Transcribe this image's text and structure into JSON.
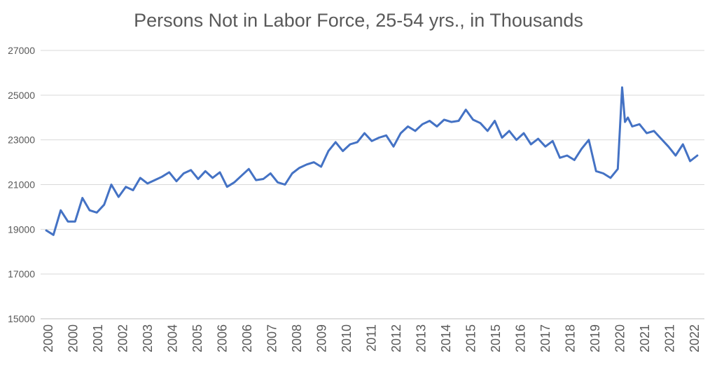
{
  "chart_data": {
    "type": "line",
    "title": "Persons Not in Labor Force, 25-54 yrs.,  in Thousands",
    "xlabel": "",
    "ylabel": "",
    "ylim": [
      15000,
      27000
    ],
    "y_ticks": [
      15000,
      17000,
      19000,
      21000,
      23000,
      25000,
      27000
    ],
    "y_tick_labels": [
      "15000",
      "17000",
      "19000",
      "21000",
      "23000",
      "25000",
      "27000"
    ],
    "x_tick_labels": [
      "2000",
      "2000",
      "2001",
      "2002",
      "2003",
      "2004",
      "2005",
      "2006",
      "2006",
      "2007",
      "2008",
      "2009",
      "2010",
      "2011",
      "2012",
      "2013",
      "2014",
      "2015",
      "2015",
      "2016",
      "2017",
      "2018",
      "2019",
      "2020",
      "2021",
      "2021",
      "2022"
    ],
    "grid": true,
    "legend": "none",
    "series": [
      {
        "color": "#4472C4",
        "x": [
          2000.0,
          2000.25,
          2000.5,
          2000.75,
          2001.0,
          2001.25,
          2001.5,
          2001.75,
          2002.0,
          2002.25,
          2002.5,
          2002.75,
          2003.0,
          2003.25,
          2003.5,
          2003.75,
          2004.0,
          2004.25,
          2004.5,
          2004.75,
          2005.0,
          2005.25,
          2005.5,
          2005.75,
          2006.0,
          2006.25,
          2006.5,
          2006.75,
          2007.0,
          2007.25,
          2007.5,
          2007.75,
          2008.0,
          2008.25,
          2008.5,
          2008.75,
          2009.0,
          2009.25,
          2009.5,
          2009.75,
          2010.0,
          2010.25,
          2010.5,
          2010.75,
          2011.0,
          2011.25,
          2011.5,
          2011.75,
          2012.0,
          2012.25,
          2012.5,
          2012.75,
          2013.0,
          2013.25,
          2013.5,
          2013.75,
          2014.0,
          2014.25,
          2014.5,
          2014.75,
          2015.0,
          2015.25,
          2015.5,
          2015.75,
          2016.0,
          2016.25,
          2016.5,
          2016.75,
          2017.0,
          2017.25,
          2017.5,
          2017.75,
          2018.0,
          2018.25,
          2018.5,
          2018.75,
          2019.0,
          2019.25,
          2019.5,
          2019.75,
          2019.9,
          2020.0,
          2020.1,
          2020.25,
          2020.5,
          2020.75,
          2021.0,
          2021.25,
          2021.5,
          2021.75,
          2022.0,
          2022.25,
          2022.5
        ],
        "values": [
          18950,
          18750,
          19850,
          19350,
          19350,
          20400,
          19850,
          19750,
          20100,
          21000,
          20450,
          20900,
          20750,
          21300,
          21050,
          21200,
          21350,
          21550,
          21150,
          21500,
          21650,
          21250,
          21600,
          21300,
          21550,
          20900,
          21100,
          21400,
          21700,
          21200,
          21250,
          21500,
          21100,
          21000,
          21500,
          21750,
          21900,
          22000,
          21800,
          22500,
          22900,
          22500,
          22800,
          22900,
          23300,
          22950,
          23100,
          23200,
          22700,
          23300,
          23600,
          23400,
          23700,
          23850,
          23600,
          23900,
          23800,
          23850,
          24350,
          23900,
          23750,
          23400,
          23850,
          23100,
          23400,
          23000,
          23300,
          22800,
          23050,
          22700,
          22950,
          22200,
          22300,
          22100,
          22600,
          23000,
          21600,
          21500,
          21300,
          21700,
          25350,
          23800,
          24000,
          23600,
          23700,
          23300,
          23400,
          23050,
          22700,
          22300,
          22800,
          22050,
          22300
        ]
      }
    ]
  }
}
